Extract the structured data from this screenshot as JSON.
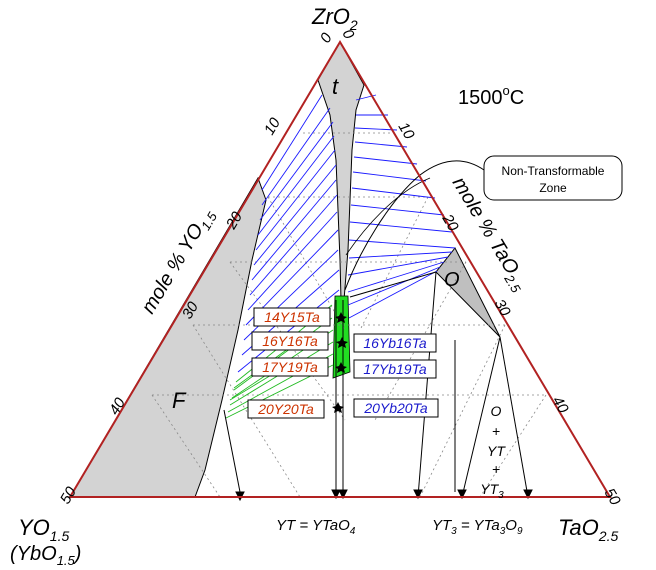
{
  "apex_top": {
    "base": "ZrO",
    "sub": "2"
  },
  "apex_left": {
    "base": "YO",
    "sub": "1.5"
  },
  "apex_left_alt": {
    "open": "(YbO",
    "sub": "1.5",
    "close": ")"
  },
  "apex_right": {
    "base": "TaO",
    "sub": "2.5"
  },
  "temperature": {
    "value": "1500",
    "sup": "o",
    "unit": "C"
  },
  "axis_left": {
    "pre": "mole % YO",
    "sub": "1.5"
  },
  "axis_right": {
    "pre": "mole % TaO",
    "sub": "2.5"
  },
  "ticks": {
    "zero": "0",
    "t10": "10",
    "t20": "20",
    "t30": "30",
    "t40": "40",
    "t50": "50"
  },
  "phases": {
    "t": "t",
    "O": "O",
    "F": "F"
  },
  "callout": {
    "line1": "Non-Transformable",
    "line2": "Zone"
  },
  "compositions_y": [
    "14Y15Ta",
    "16Y16Ta",
    "17Y19Ta",
    "20Y20Ta"
  ],
  "compositions_yb": [
    "16Yb16Ta",
    "17Yb19Ta",
    "20Yb20Ta"
  ],
  "region_label": {
    "l1": "O",
    "l2": "+",
    "l3": "YT",
    "l4": "+",
    "l5": "YT",
    "l5sub": "3"
  },
  "bottom_yt": {
    "pre": "YT = YTaO",
    "sub": "4"
  },
  "bottom_yt3": {
    "pre": "YT",
    "sub": "3",
    "mid": " = YTa",
    "sub2": "3",
    "post": "O",
    "sub3": "9"
  },
  "colors": {
    "frame": "#b22222",
    "tie_lines": "#1a1aff",
    "green": "#22dd22",
    "gray": "#d3d3d3",
    "y_label": "#cc3300",
    "yb_label": "#1a1acc"
  }
}
